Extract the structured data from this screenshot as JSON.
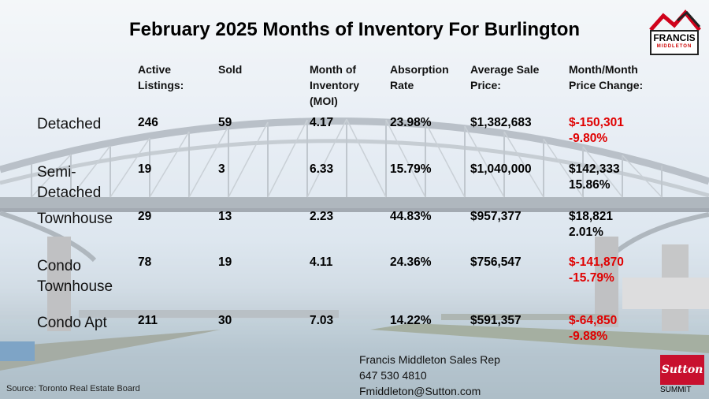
{
  "title": "February 2025 Months of Inventory For Burlington",
  "columns": [
    [
      "Active",
      "Listings:"
    ],
    [
      "Sold"
    ],
    [
      "Month of",
      "Inventory",
      "(MOI)"
    ],
    [
      "Absorption",
      "Rate"
    ],
    [
      "Average Sale",
      "Price:"
    ],
    [
      "Month/Month",
      "Price Change:"
    ]
  ],
  "rows": [
    {
      "label": [
        "Detached"
      ],
      "active": "246",
      "sold": "59",
      "moi": "4.17",
      "absorption": "23.98%",
      "avg_price": "$1,382,683",
      "change_amount": "$-150,301",
      "change_pct": "-9.80%",
      "negative": true
    },
    {
      "label": [
        "Semi-",
        "Detached"
      ],
      "active": "19",
      "sold": "3",
      "moi": "6.33",
      "absorption": "15.79%",
      "avg_price": "$1,040,000",
      "change_amount": "$142,333",
      "change_pct": "15.86%",
      "negative": false
    },
    {
      "label": [
        "Townhouse"
      ],
      "active": "29",
      "sold": "13",
      "moi": "2.23",
      "absorption": "44.83%",
      "avg_price": "$957,377",
      "change_amount": "$18,821",
      "change_pct": "2.01%",
      "negative": false
    },
    {
      "label": [
        "Condo",
        "Townhouse"
      ],
      "active": "78",
      "sold": "19",
      "moi": "4.11",
      "absorption": "24.36%",
      "avg_price": "$756,547",
      "change_amount": "$-141,870",
      "change_pct": "-15.79%",
      "negative": true
    },
    {
      "label": [
        "Condo Apt"
      ],
      "active": "211",
      "sold": "30",
      "moi": "7.03",
      "absorption": "14.22%",
      "avg_price": "$591,357",
      "change_amount": "$-64,850",
      "change_pct": "-9.88%",
      "negative": true
    }
  ],
  "contact": {
    "name": "Francis Middleton Sales Rep",
    "phone": "647 530 4810",
    "email": "Fmiddleton@Sutton.com"
  },
  "source": "Source: Toronto Real Estate Board",
  "logo": {
    "name": "FRANCIS",
    "sub": "MIDDLETON"
  },
  "brokerage": {
    "name": "Sutton",
    "sub": "SUMMIT"
  },
  "colors": {
    "negative": "#e00000",
    "brand_red": "#c8102e"
  }
}
